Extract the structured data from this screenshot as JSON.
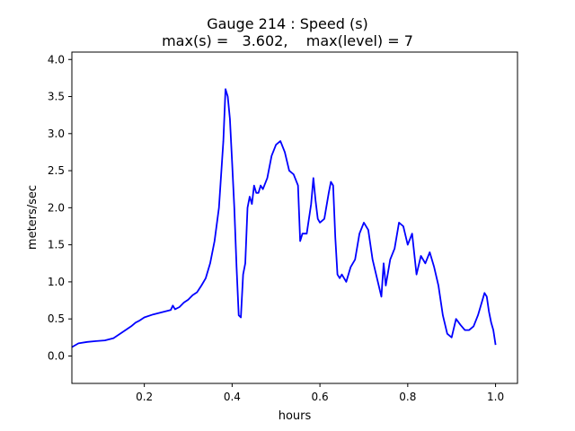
{
  "chart_data": {
    "type": "line",
    "title_line1": "Gauge 214 : Speed (s)",
    "title_line2": "max(s) =   3.602,    max(level) = 7",
    "xlabel": "hours",
    "ylabel": "meters/sec",
    "xlim": [
      0.035,
      1.05
    ],
    "ylim": [
      -0.37,
      4.1
    ],
    "xticks": [
      0.2,
      0.4,
      0.6,
      0.8,
      1.0
    ],
    "xtick_labels": [
      "0.2",
      "0.4",
      "0.6",
      "0.8",
      "1.0"
    ],
    "yticks": [
      0.0,
      0.5,
      1.0,
      1.5,
      2.0,
      2.5,
      3.0,
      3.5,
      4.0
    ],
    "ytick_labels": [
      "0.0",
      "0.5",
      "1.0",
      "1.5",
      "2.0",
      "2.5",
      "3.0",
      "3.5",
      "4.0"
    ],
    "grid": false,
    "series": [
      {
        "color": "#0000ff",
        "x": [
          0.035,
          0.05,
          0.07,
          0.09,
          0.11,
          0.13,
          0.15,
          0.17,
          0.18,
          0.19,
          0.2,
          0.22,
          0.24,
          0.26,
          0.265,
          0.27,
          0.28,
          0.29,
          0.3,
          0.31,
          0.32,
          0.33,
          0.34,
          0.35,
          0.36,
          0.37,
          0.38,
          0.385,
          0.39,
          0.395,
          0.4,
          0.405,
          0.41,
          0.415,
          0.42,
          0.425,
          0.43,
          0.435,
          0.44,
          0.445,
          0.45,
          0.455,
          0.46,
          0.465,
          0.47,
          0.48,
          0.49,
          0.5,
          0.51,
          0.52,
          0.53,
          0.54,
          0.55,
          0.555,
          0.56,
          0.57,
          0.58,
          0.585,
          0.59,
          0.595,
          0.6,
          0.61,
          0.62,
          0.625,
          0.63,
          0.635,
          0.64,
          0.645,
          0.65,
          0.66,
          0.67,
          0.68,
          0.69,
          0.7,
          0.71,
          0.72,
          0.73,
          0.74,
          0.745,
          0.75,
          0.76,
          0.77,
          0.78,
          0.79,
          0.8,
          0.81,
          0.82,
          0.83,
          0.84,
          0.85,
          0.86,
          0.87,
          0.88,
          0.89,
          0.9,
          0.91,
          0.92,
          0.93,
          0.94,
          0.95,
          0.96,
          0.97,
          0.975,
          0.98,
          0.985,
          0.99,
          0.995,
          1.0
        ],
        "y": [
          0.12,
          0.17,
          0.19,
          0.2,
          0.21,
          0.24,
          0.32,
          0.4,
          0.45,
          0.48,
          0.52,
          0.56,
          0.59,
          0.62,
          0.68,
          0.63,
          0.66,
          0.72,
          0.76,
          0.82,
          0.86,
          0.95,
          1.05,
          1.25,
          1.55,
          2.0,
          2.9,
          3.6,
          3.5,
          3.2,
          2.6,
          2.0,
          1.2,
          0.55,
          0.52,
          1.1,
          1.25,
          2.0,
          2.15,
          2.05,
          2.3,
          2.2,
          2.2,
          2.3,
          2.25,
          2.4,
          2.7,
          2.85,
          2.9,
          2.75,
          2.5,
          2.45,
          2.3,
          1.55,
          1.65,
          1.65,
          2.05,
          2.4,
          2.1,
          1.85,
          1.8,
          1.85,
          2.2,
          2.35,
          2.3,
          1.6,
          1.1,
          1.05,
          1.1,
          1.0,
          1.2,
          1.3,
          1.65,
          1.8,
          1.7,
          1.3,
          1.05,
          0.8,
          1.25,
          0.95,
          1.3,
          1.45,
          1.8,
          1.75,
          1.5,
          1.65,
          1.1,
          1.35,
          1.25,
          1.4,
          1.2,
          0.95,
          0.55,
          0.3,
          0.25,
          0.5,
          0.42,
          0.35,
          0.35,
          0.4,
          0.55,
          0.75,
          0.85,
          0.8,
          0.6,
          0.45,
          0.35,
          0.15
        ]
      }
    ]
  }
}
